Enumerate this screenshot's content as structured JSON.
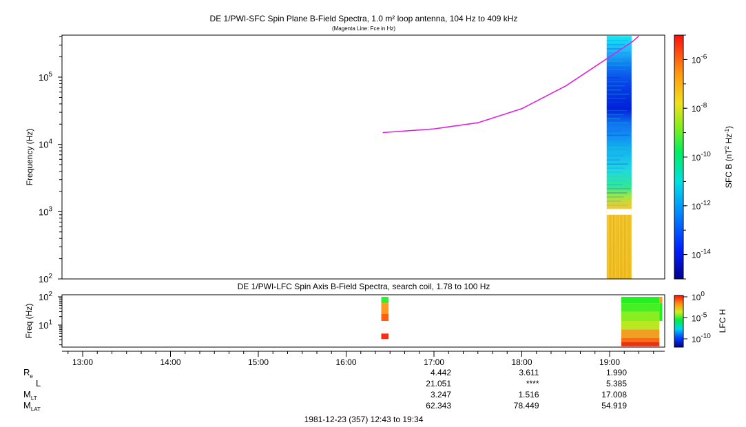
{
  "chart_data": [
    {
      "type": "heatmap",
      "title": "DE 1/PWI-SFC  Spin Plane B-Field Spectra, 1.0 m² loop antenna, 104 Hz to 409 kHz",
      "subtitle": "(Magenta Line: Fce in Hz)",
      "ylabel": "Frequency (Hz)",
      "yscale": "log",
      "ylim": [
        100,
        409000
      ],
      "y_ticks": [
        {
          "base": "10",
          "exp": "2"
        },
        {
          "base": "10",
          "exp": "3"
        },
        {
          "base": "10",
          "exp": "4"
        },
        {
          "base": "10",
          "exp": "5"
        }
      ],
      "colorbar": {
        "label": "SFC B (nT² Hz⁻¹)",
        "scale": "log",
        "range": [
          1e-15,
          1e-05
        ],
        "ticks": [
          {
            "base": "10",
            "exp": "-6"
          },
          {
            "base": "10",
            "exp": "-8"
          },
          {
            "base": "10",
            "exp": "-10"
          },
          {
            "base": "10",
            "exp": "-12"
          },
          {
            "base": "10",
            "exp": "-14"
          }
        ]
      },
      "data_block": {
        "time_start": "18:58",
        "time_end": "19:15",
        "freq_gap": [
          900,
          1100
        ]
      },
      "fce_line": {
        "color": "#e020e0",
        "points": [
          {
            "t": "16:25",
            "f": 15000
          },
          {
            "t": "17:00",
            "f": 17000
          },
          {
            "t": "17:30",
            "f": 21000
          },
          {
            "t": "18:00",
            "f": 34000
          },
          {
            "t": "18:30",
            "f": 74000
          },
          {
            "t": "19:00",
            "f": 200000
          },
          {
            "t": "19:15",
            "f": 330000
          },
          {
            "t": "19:20",
            "f": 409000
          }
        ]
      }
    },
    {
      "type": "heatmap",
      "title": "DE 1/PWI-LFC  Spin Axis B-Field Spectra, search coil, 1.78 to 100 Hz",
      "ylabel": "Freq (Hz)",
      "yscale": "log",
      "ylim": [
        1.78,
        100
      ],
      "y_ticks": [
        {
          "base": "10",
          "exp": "2"
        },
        {
          "base": "10",
          "exp": "1"
        }
      ],
      "colorbar": {
        "label": "LFC H",
        "ticks": [
          {
            "base": "10",
            "exp": "0"
          },
          {
            "base": "10",
            "exp": "-5"
          },
          {
            "base": "10",
            "exp": "-10"
          }
        ]
      },
      "cells": [
        {
          "t0": "16:24",
          "t1": "16:29",
          "f0": 60,
          "f1": 100,
          "color": "#30ee30"
        },
        {
          "t0": "16:24",
          "t1": "16:29",
          "f0": 25,
          "f1": 60,
          "color": "#ff9a20"
        },
        {
          "t0": "16:24",
          "t1": "16:29",
          "f0": 14,
          "f1": 25,
          "color": "#ff6010"
        },
        {
          "t0": "16:24",
          "t1": "16:29",
          "f0": 3.2,
          "f1": 5,
          "color": "#ff2a10"
        },
        {
          "t0": "19:08",
          "t1": "19:34",
          "f0": 60,
          "f1": 100,
          "color": "#22f022"
        },
        {
          "t0": "19:08",
          "t1": "19:34",
          "f0": 30,
          "f1": 60,
          "color": "#44f022"
        },
        {
          "t0": "19:08",
          "t1": "19:34",
          "f0": 14,
          "f1": 30,
          "color": "#88ee22"
        },
        {
          "t0": "19:08",
          "t1": "19:34",
          "f0": 7,
          "f1": 14,
          "color": "#b8e820"
        },
        {
          "t0": "19:08",
          "t1": "19:34",
          "f0": 3.5,
          "f1": 7,
          "color": "#f0a020"
        },
        {
          "t0": "19:08",
          "t1": "19:34",
          "f0": 2.5,
          "f1": 3.5,
          "color": "#ff6a10"
        },
        {
          "t0": "19:08",
          "t1": "19:34",
          "f0": 1.78,
          "f1": 2.5,
          "color": "#ee3010"
        },
        {
          "t0": "19:34",
          "t1": "19:36",
          "f0": 60,
          "f1": 100,
          "color": "#ff9a20"
        },
        {
          "t0": "19:34",
          "t1": "19:36",
          "f0": 14,
          "f1": 60,
          "color": "#20f020"
        }
      ]
    }
  ],
  "time_axis": {
    "ticks": [
      "13:00",
      "14:00",
      "15:00",
      "16:00",
      "17:00",
      "18:00",
      "19:00"
    ],
    "range": [
      "12:43",
      "19:34"
    ]
  },
  "ephemeris": {
    "rows": [
      {
        "label": "R",
        "sub": "e",
        "values": [
          "4.442",
          "3.611",
          "1.990"
        ]
      },
      {
        "label": "L",
        "sub": "",
        "values": [
          "21.051",
          "****",
          "5.385"
        ]
      },
      {
        "label": "M",
        "sub": "LT",
        "values": [
          "3.247",
          "1.516",
          "17.008"
        ]
      },
      {
        "label": "M",
        "sub": "LAT",
        "values": [
          "62.343",
          "78.449",
          "54.919"
        ]
      }
    ],
    "times": [
      "17:00",
      "18:00",
      "19:00"
    ]
  },
  "footer": "1981-12-23 (357) 12:43 to 19:34"
}
